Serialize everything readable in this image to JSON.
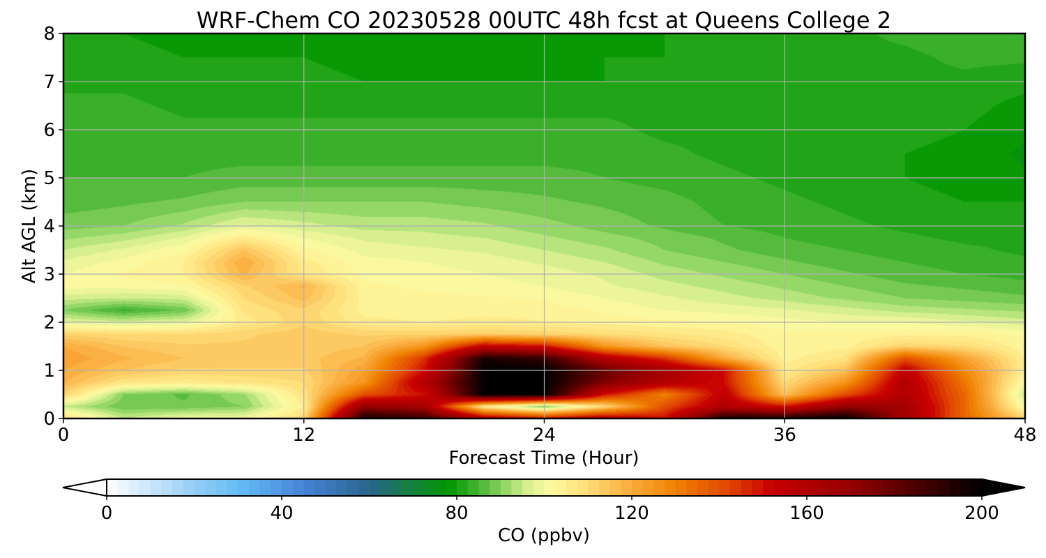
{
  "chart_data": {
    "type": "heatmap",
    "title": "WRF-Chem CO  20230528 00UTC 48h fcst at Queens College 2",
    "xlabel": "Forecast Time (Hour)",
    "ylabel": "Alt AGL (km)",
    "xlim": [
      0,
      48
    ],
    "ylim": [
      0,
      8
    ],
    "x_ticks": [
      "0",
      "12",
      "24",
      "36",
      "48"
    ],
    "y_ticks": [
      "0",
      "1",
      "2",
      "3",
      "4",
      "5",
      "6",
      "7",
      "8"
    ],
    "grid": true,
    "colorbar": {
      "label": "CO  (ppbv)",
      "range": [
        0,
        200
      ],
      "ticks": [
        "0",
        "40",
        "80",
        "120",
        "160",
        "200"
      ],
      "extend": "both"
    },
    "x": [
      0,
      3,
      6,
      9,
      12,
      15,
      18,
      21,
      24,
      27,
      30,
      33,
      36,
      39,
      42,
      45,
      48
    ],
    "y": [
      0,
      0.25,
      0.5,
      0.75,
      1,
      1.25,
      1.5,
      1.75,
      2,
      2.25,
      2.5,
      2.75,
      3,
      3.25,
      3.5,
      3.75,
      4,
      4.5,
      5,
      5.5,
      6,
      6.5,
      7,
      7.5,
      8
    ],
    "z": [
      [
        110,
        95,
        100,
        100,
        110,
        196,
        190,
        160,
        150,
        160,
        150,
        196,
        196,
        200,
        165,
        135,
        112
      ],
      [
        95,
        88,
        88,
        90,
        105,
        170,
        165,
        105,
        88,
        110,
        140,
        160,
        150,
        170,
        165,
        135,
        100
      ],
      [
        112,
        90,
        87,
        92,
        108,
        140,
        150,
        200,
        200,
        150,
        130,
        155,
        115,
        140,
        160,
        135,
        95
      ],
      [
        118,
        108,
        106,
        108,
        110,
        125,
        160,
        200,
        200,
        175,
        160,
        150,
        110,
        125,
        160,
        132,
        100
      ],
      [
        120,
        115,
        112,
        112,
        112,
        122,
        150,
        200,
        200,
        180,
        165,
        150,
        106,
        115,
        155,
        128,
        105
      ],
      [
        122,
        118,
        115,
        114,
        114,
        118,
        145,
        195,
        190,
        160,
        145,
        120,
        104,
        108,
        140,
        122,
        105
      ],
      [
        120,
        115,
        113,
        113,
        113,
        115,
        125,
        155,
        150,
        125,
        115,
        110,
        103,
        104,
        112,
        110,
        103
      ],
      [
        112,
        110,
        110,
        112,
        114,
        112,
        112,
        113,
        112,
        110,
        108,
        106,
        103,
        103,
        104,
        104,
        102
      ],
      [
        98,
        96,
        98,
        106,
        112,
        106,
        105,
        106,
        105,
        104,
        103,
        103,
        101,
        100,
        100,
        98,
        96
      ],
      [
        90,
        84,
        88,
        108,
        112,
        104,
        103,
        104,
        104,
        102,
        100,
        99,
        98,
        96,
        94,
        93,
        92
      ],
      [
        96,
        95,
        96,
        110,
        116,
        104,
        103,
        103,
        102,
        100,
        98,
        96,
        94,
        92,
        90,
        89,
        88
      ],
      [
        101,
        101,
        102,
        112,
        118,
        103,
        102,
        101,
        100,
        98,
        96,
        94,
        92,
        90,
        88,
        87,
        86
      ],
      [
        100,
        103,
        105,
        118,
        107,
        102,
        101,
        100,
        99,
        97,
        94,
        92,
        90,
        88,
        86,
        85,
        84
      ],
      [
        98,
        101,
        105,
        120,
        106,
        101,
        100,
        99,
        97,
        95,
        92,
        90,
        88,
        86,
        85,
        84,
        83
      ],
      [
        95,
        98,
        102,
        115,
        103,
        99,
        98,
        97,
        95,
        93,
        90,
        88,
        86,
        85,
        84,
        83,
        82
      ],
      [
        92,
        94,
        98,
        106,
        100,
        97,
        96,
        95,
        93,
        91,
        89,
        87,
        85,
        84,
        83,
        82,
        82
      ],
      [
        89,
        90,
        93,
        98,
        96,
        94,
        94,
        93,
        91,
        89,
        87,
        85,
        84,
        83,
        82,
        81,
        81
      ],
      [
        86,
        87,
        88,
        90,
        90,
        90,
        90,
        89,
        88,
        87,
        86,
        84,
        83,
        82,
        81,
        80,
        80
      ],
      [
        85,
        85,
        85,
        86,
        86,
        86,
        86,
        86,
        86,
        85,
        84,
        83,
        82,
        81,
        80,
        79,
        78
      ],
      [
        84,
        84,
        84,
        84,
        84,
        84,
        84,
        84,
        84,
        84,
        83,
        82,
        81,
        81,
        80,
        79,
        77
      ],
      [
        84,
        84,
        83,
        83,
        83,
        83,
        83,
        83,
        83,
        83,
        82,
        82,
        82,
        81,
        81,
        80,
        78
      ],
      [
        83,
        83,
        82,
        82,
        82,
        82,
        82,
        82,
        82,
        82,
        82,
        82,
        82,
        82,
        82,
        81,
        79
      ],
      [
        82,
        82,
        81,
        81,
        81,
        80,
        80,
        80,
        80,
        80,
        81,
        81,
        82,
        82,
        82,
        82,
        81
      ],
      [
        81,
        81,
        80,
        80,
        80,
        79,
        79,
        79,
        79,
        80,
        80,
        81,
        82,
        82,
        82,
        83,
        83
      ],
      [
        80,
        80,
        79,
        79,
        79,
        78,
        78,
        78,
        78,
        79,
        80,
        80,
        81,
        82,
        83,
        84,
        84
      ]
    ]
  }
}
